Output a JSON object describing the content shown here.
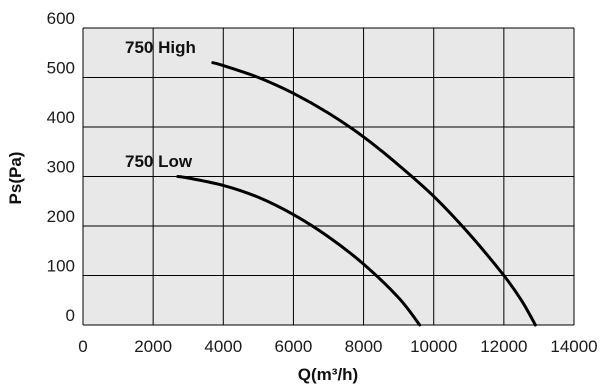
{
  "chart_data": {
    "type": "line",
    "xlabel": "Q(m³/h)",
    "ylabel": "Ps(Pa)",
    "xlim": [
      0,
      14000
    ],
    "ylim": [
      0,
      600
    ],
    "x_ticks": [
      0,
      2000,
      4000,
      6000,
      8000,
      10000,
      12000,
      14000
    ],
    "y_ticks": [
      0,
      100,
      200,
      300,
      400,
      500,
      600
    ],
    "x_tick_labels": [
      "0",
      "2000",
      "4000",
      "6000",
      "8000",
      "10000",
      "12000",
      "14000"
    ],
    "y_tick_labels": [
      "0",
      "100",
      "200",
      "300",
      "400",
      "500",
      "600"
    ],
    "grid": true,
    "plot_background": "#e8e8e8",
    "line_color": "#000000",
    "series": [
      {
        "name": "750 High",
        "x": [
          3700,
          4000,
          5000,
          6000,
          7000,
          8000,
          9000,
          10000,
          11000,
          12000,
          12500,
          12900
        ],
        "y": [
          530,
          524,
          500,
          468,
          428,
          380,
          323,
          260,
          185,
          100,
          50,
          0
        ]
      },
      {
        "name": "750 Low",
        "x": [
          2700,
          3000,
          4000,
          5000,
          6000,
          7000,
          8000,
          9000,
          9600
        ],
        "y": [
          300,
          297,
          282,
          258,
          223,
          178,
          123,
          55,
          0
        ]
      }
    ]
  }
}
